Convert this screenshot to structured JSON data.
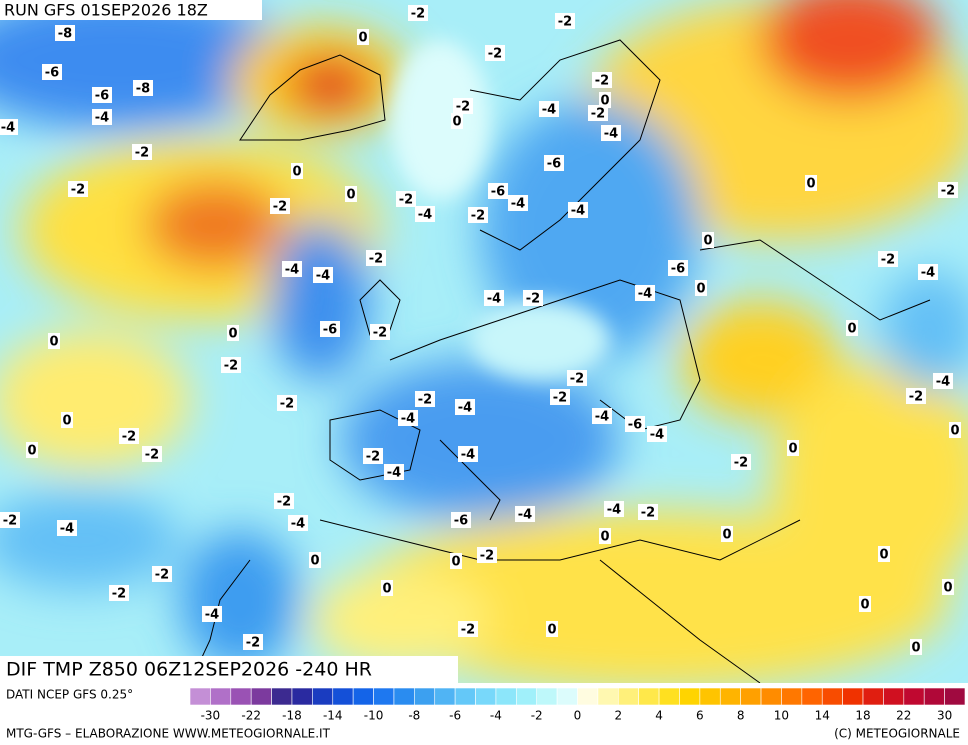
{
  "header": {
    "title": "RUN GFS 01SEP2026 18Z"
  },
  "footer": {
    "run_label": "DIF TMP Z850 06Z12SEP2026 -240 HR",
    "source": "DATI NCEP GFS 0.25°",
    "credit_left": "MTG-GFS – ELABORAZIONE WWW.METEOGIORNALE.IT",
    "credit_right": "(C) METEOGIORNALE"
  },
  "colorbar": {
    "colors": [
      "#c48fd6",
      "#b070c8",
      "#9a52b4",
      "#7c3a9e",
      "#3c2a90",
      "#2a2aa0",
      "#1a3cc0",
      "#1450d8",
      "#1464e8",
      "#1e78f0",
      "#2a8cf0",
      "#3ca0f0",
      "#50b4f4",
      "#64c8f8",
      "#78d8fa",
      "#8ce6fa",
      "#a0f0fa",
      "#bef8fa",
      "#dcfcfc",
      "#fffce0",
      "#fff8b0",
      "#fff07a",
      "#ffe84a",
      "#ffe020",
      "#ffd400",
      "#ffc400",
      "#ffb400",
      "#ffa000",
      "#ff8c00",
      "#ff7800",
      "#ff6400",
      "#f84c00",
      "#f03200",
      "#e01e10",
      "#d01020",
      "#c00830",
      "#b00838",
      "#a00a40"
    ],
    "labels": [
      -30,
      -22,
      -18,
      -14,
      -10,
      -8,
      -6,
      -4,
      -2,
      0,
      2,
      4,
      6,
      8,
      10,
      14,
      18,
      22,
      30
    ]
  },
  "map": {
    "labels": [
      "-8",
      "-6",
      "-6",
      "-8",
      "-4",
      "-4",
      "-2",
      "-2",
      "-2",
      "-2",
      "0",
      "-2",
      "-2",
      "0",
      "-2",
      "0",
      "-4",
      "-2",
      "-4",
      "0",
      "-6",
      "0",
      "-2",
      "-4",
      "-6",
      "-4",
      "-2",
      "-4",
      "-2",
      "0",
      "-2",
      "0",
      "-6",
      "-4",
      "-4",
      "-2",
      "-4",
      "-2",
      "-4",
      "0",
      "-2",
      "-4",
      "0",
      "-6",
      "-2",
      "0",
      "0",
      "-2",
      "-2",
      "-2",
      "-2",
      "-2",
      "-4",
      "-4",
      "-4",
      "-6",
      "-4",
      "-4",
      "-2",
      "0",
      "0",
      "-2",
      "-2",
      "0",
      "-2",
      "-4",
      "-4",
      "-2",
      "0",
      "-2",
      "-4",
      "-6",
      "-4",
      "-4",
      "-2",
      "0",
      "0",
      "-2",
      "-4",
      "0",
      "-2",
      "0",
      "0",
      "-2",
      "-2",
      "0",
      "0",
      "-4",
      "0",
      "-2",
      "-2",
      "0",
      "0"
    ]
  }
}
